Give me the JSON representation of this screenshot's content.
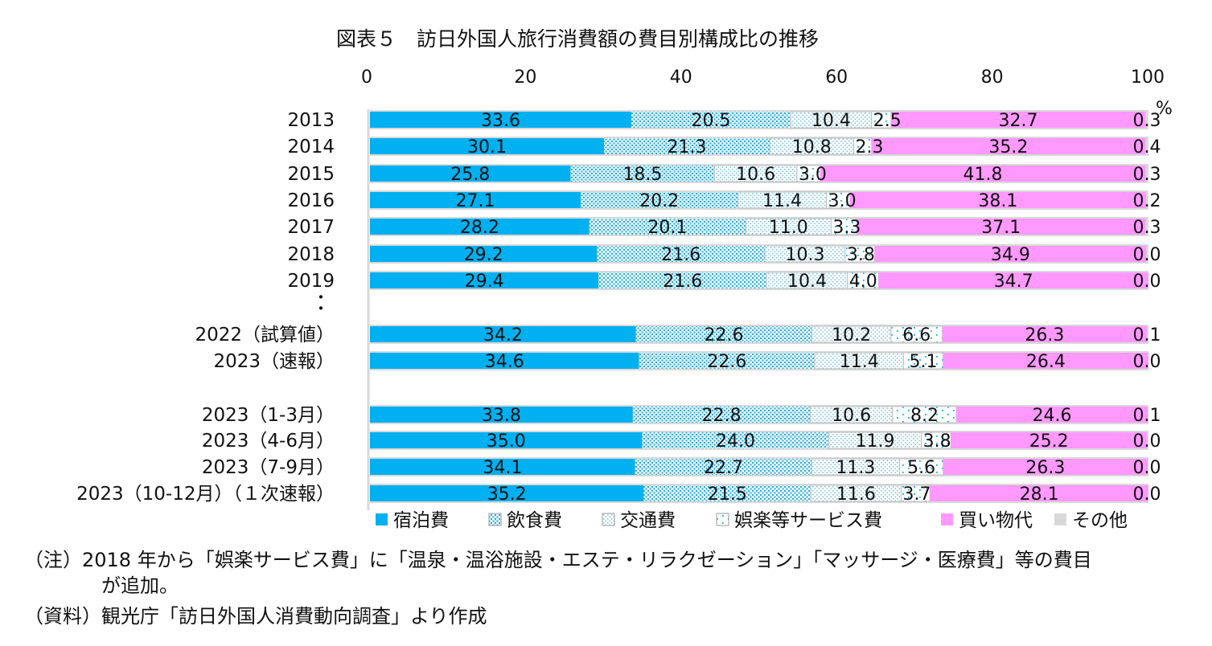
{
  "chart_data": {
    "type": "bar",
    "stacked": true,
    "orientation": "horizontal",
    "title": "図表５　訪日外国人旅行消費額の費目別構成比の推移",
    "unit": "%",
    "xlim": [
      0,
      100
    ],
    "x_ticks": [
      "0",
      "20",
      "40",
      "60",
      "80",
      "100"
    ],
    "grid": false,
    "legend_position": "bottom",
    "categories": [
      "2013",
      "2014",
      "2015",
      "2016",
      "2017",
      "2018",
      "2019",
      "2022（試算値）",
      "2023（速報）",
      "2023（1-3月）",
      "2023（4-6月）",
      "2023（7-9月）",
      "2023（10-12月）（１次速報）"
    ],
    "gap_marker": "・\n・",
    "series": [
      {
        "name": "宿泊費",
        "color": "#00B0F0",
        "pattern": "solid",
        "values": [
          33.6,
          30.1,
          25.8,
          27.1,
          28.2,
          29.2,
          29.4,
          34.2,
          34.6,
          33.8,
          35.0,
          34.1,
          35.2
        ],
        "labels": [
          "33.6",
          "30.1",
          "25.8",
          "27.1",
          "28.2",
          "29.2",
          "29.4",
          "34.2",
          "34.6",
          "33.8",
          "35.0",
          "34.1",
          "35.2"
        ]
      },
      {
        "name": "飲食費",
        "color": "#4FC3E6",
        "pattern": "dense",
        "values": [
          20.5,
          21.3,
          18.5,
          20.2,
          20.1,
          21.6,
          21.6,
          22.6,
          22.6,
          22.8,
          24.0,
          22.7,
          21.5
        ],
        "labels": [
          "20.5",
          "21.3",
          "18.5",
          "20.2",
          "20.1",
          "21.6",
          "21.6",
          "22.6",
          "22.6",
          "22.8",
          "24.0",
          "22.7",
          "21.5"
        ]
      },
      {
        "name": "交通費",
        "color": "#7FCBE0",
        "pattern": "light",
        "values": [
          10.4,
          10.8,
          10.6,
          11.4,
          11.0,
          10.3,
          10.4,
          10.2,
          11.4,
          10.6,
          11.9,
          11.3,
          11.6
        ],
        "labels": [
          "10.4",
          "10.8",
          "10.6",
          "11.4",
          "11.0",
          "10.3",
          "10.4",
          "10.2",
          "11.4",
          "10.6",
          "11.9",
          "11.3",
          "11.6"
        ]
      },
      {
        "name": "娯楽等サービス費",
        "color": "#00B0F0",
        "pattern": "sparse",
        "values": [
          2.5,
          2.3,
          3.0,
          3.0,
          3.3,
          3.8,
          4.0,
          6.6,
          5.1,
          8.2,
          3.8,
          5.6,
          3.7
        ],
        "labels": [
          "2.5",
          "2.3",
          "3.0",
          "3.0",
          "3.3",
          "3.8",
          "4.0",
          "6.6",
          "5.1",
          "8.2",
          "3.8",
          "5.6",
          "3.7"
        ]
      },
      {
        "name": "買い物代",
        "color": "#FF99FF",
        "pattern": "solid",
        "values": [
          32.7,
          35.2,
          41.8,
          38.1,
          37.1,
          34.9,
          34.7,
          26.3,
          26.4,
          24.6,
          25.2,
          26.3,
          28.1
        ],
        "labels": [
          "32.7",
          "35.2",
          "41.8",
          "38.1",
          "37.1",
          "34.9",
          "34.7",
          "26.3",
          "26.4",
          "24.6",
          "25.2",
          "26.3",
          "28.1"
        ]
      },
      {
        "name": "その他",
        "color": "#D9D9D9",
        "pattern": "solid",
        "values": [
          0.3,
          0.4,
          0.3,
          0.2,
          0.3,
          0.0,
          0.0,
          0.1,
          0.0,
          0.1,
          0.0,
          0.0,
          0.0
        ],
        "labels": [
          "0.3",
          "0.4",
          "0.3",
          "0.2",
          "0.3",
          "0.0",
          "0.0",
          "0.1",
          "0.0",
          "0.1",
          "0.0",
          "0.0",
          "0.0"
        ]
      }
    ]
  },
  "notes": {
    "note1_line1": "（注）2018 年から「娯楽サービス費」に「温泉・温浴施設・エステ・リラクゼーション」「マッサージ・医療費」等の費目",
    "note1_line2": "が追加。",
    "source": "（資料）観光庁「訪日外国人消費動向調査」より作成"
  }
}
